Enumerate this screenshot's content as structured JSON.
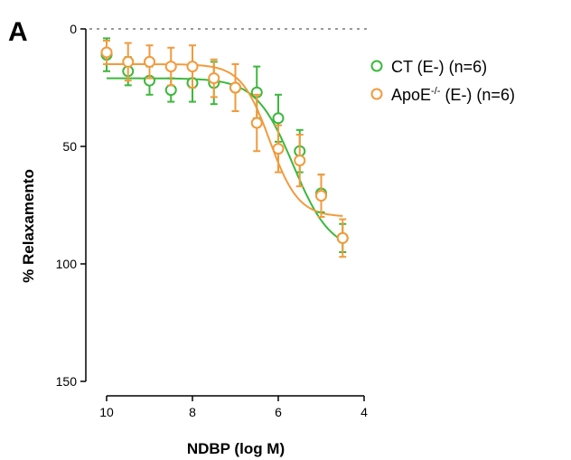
{
  "panel_label": "A",
  "chart_data": {
    "type": "scatter",
    "xlabel": "NDBP (log M)",
    "ylabel": "% Relaxamento",
    "xlim": [
      10,
      4
    ],
    "ylim": [
      0,
      150
    ],
    "y_inverted": true,
    "x_ticks": [
      10,
      8,
      6,
      4
    ],
    "y_ticks": [
      0,
      50,
      100,
      150
    ],
    "zero_line": "dotted",
    "legend_position": "top-right",
    "series": [
      {
        "name": "CT (E-) (n=6)",
        "color": "#3cb83c",
        "x": [
          10,
          9.5,
          9,
          8.5,
          8,
          7.5,
          7,
          6.5,
          6,
          5.5,
          5,
          4.5
        ],
        "y": [
          11,
          18,
          22,
          26,
          23,
          23,
          25,
          27,
          38,
          52,
          70,
          89
        ],
        "err": [
          7,
          6,
          6,
          5,
          8,
          9,
          10,
          11,
          10,
          9,
          8,
          6
        ],
        "fit": {
          "bottom": 21,
          "top": 95,
          "logEC50": 5.65,
          "hill": -1.0
        }
      },
      {
        "name": "ApoE-/- (E-) (n=6)",
        "color": "#f39a3c",
        "x": [
          10,
          9.5,
          9,
          8.5,
          8,
          7.5,
          7,
          6.5,
          6,
          5.5,
          5,
          4.5
        ],
        "y": [
          10,
          14,
          14,
          16,
          16,
          21,
          25,
          40,
          51,
          56,
          71,
          89
        ],
        "err": [
          5,
          8,
          7,
          8,
          9,
          8,
          10,
          12,
          10,
          11,
          9,
          8
        ],
        "fit": {
          "bottom": 15,
          "top": 80,
          "logEC50": 6.2,
          "hill": -1.3
        }
      }
    ]
  },
  "legend": {
    "ct_label": "CT (E-) (n=6)",
    "apoe_prefix": "ApoE",
    "apoe_sup": "-/-",
    "apoe_suffix": " (E-) (n=6)"
  }
}
